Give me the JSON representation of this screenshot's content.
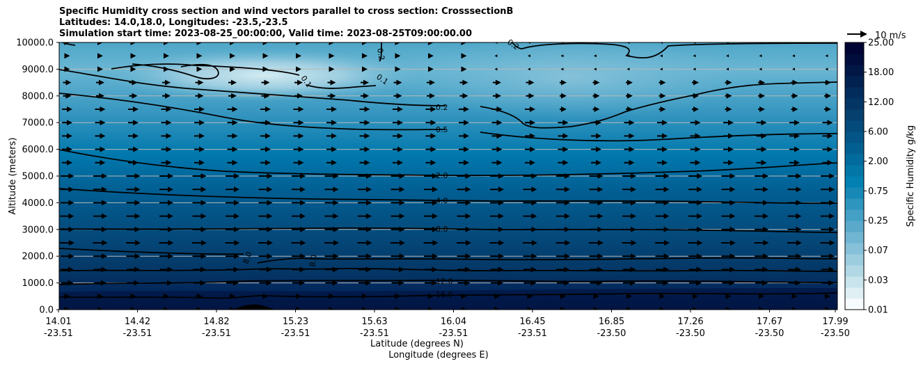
{
  "chart_data": {
    "type": "contour",
    "title_lines": [
      "Specific Humidity cross section and wind vectors parallel to cross section: CrosssectionB",
      "Latitudes: 14.0,18.0, Longitudes: -23.5,-23.5",
      "Simulation start time: 2023-08-25_00:00:00, Valid time: 2023-08-25T09:00:00.00"
    ],
    "ylabel": "Altitude (meters)",
    "xlabel_lat": "Latitude (degrees N)",
    "xlabel_lon": "Longitude (degrees E)",
    "ylim": [
      0,
      10000
    ],
    "yticks": [
      "0.0",
      "1000.0",
      "2000.0",
      "3000.0",
      "4000.0",
      "5000.0",
      "6000.0",
      "7000.0",
      "8000.0",
      "9000.0",
      "10000.0"
    ],
    "xticks": [
      {
        "lat": "14.01",
        "lon": "-23.51"
      },
      {
        "lat": "14.42",
        "lon": "-23.51"
      },
      {
        "lat": "14.82",
        "lon": "-23.51"
      },
      {
        "lat": "15.23",
        "lon": "-23.51"
      },
      {
        "lat": "15.63",
        "lon": "-23.51"
      },
      {
        "lat": "16.04",
        "lon": "-23.51"
      },
      {
        "lat": "16.45",
        "lon": "-23.51"
      },
      {
        "lat": "16.85",
        "lon": "-23.50"
      },
      {
        "lat": "17.26",
        "lon": "-23.50"
      },
      {
        "lat": "17.67",
        "lon": "-23.50"
      },
      {
        "lat": "17.99",
        "lon": "-23.50"
      }
    ],
    "colorbar": {
      "label": "Specific Humidity g/kg",
      "ticks": [
        "0.01",
        "0.03",
        "0.07",
        "0.25",
        "0.75",
        "2.00",
        "6.00",
        "12.00",
        "18.00",
        "25.00"
      ],
      "colors": [
        "#f7fbfd",
        "#e0eff4",
        "#c9e4ec",
        "#b1d8e4",
        "#9ccddf",
        "#86c1d9",
        "#70b5d2",
        "#5aa9cb",
        "#44a0c5",
        "#2e95be",
        "#1889b6",
        "#0280b2",
        "#0176a7",
        "#016b9d",
        "#025f91",
        "#025586",
        "#044a7b",
        "#05406f",
        "#043665",
        "#022c5b",
        "#012150",
        "#011846",
        "#010d3c",
        "#000533"
      ]
    },
    "quiver_key": "10 m/s",
    "contour_levels": [
      "0.1",
      "0.2",
      "0.5",
      "2.0",
      "4.0",
      "8.0",
      "12.0",
      "16.0"
    ],
    "humidity_profile_gkg": [
      {
        "altitude": 0,
        "value": 19
      },
      {
        "altitude": 500,
        "value": 17
      },
      {
        "altitude": 1000,
        "value": 13
      },
      {
        "altitude": 2000,
        "value": 10
      },
      {
        "altitude": 3000,
        "value": 8
      },
      {
        "altitude": 4000,
        "value": 4
      },
      {
        "altitude": 5000,
        "value": 2
      },
      {
        "altitude": 6000,
        "value": 0.9
      },
      {
        "altitude": 7000,
        "value": 0.45
      },
      {
        "altitude": 8000,
        "value": 0.2
      },
      {
        "altitude": 9000,
        "value": 0.1
      },
      {
        "altitude": 10000,
        "value": 0.25
      }
    ],
    "wind_direction": "parallel to cross section, predominantly northward"
  }
}
